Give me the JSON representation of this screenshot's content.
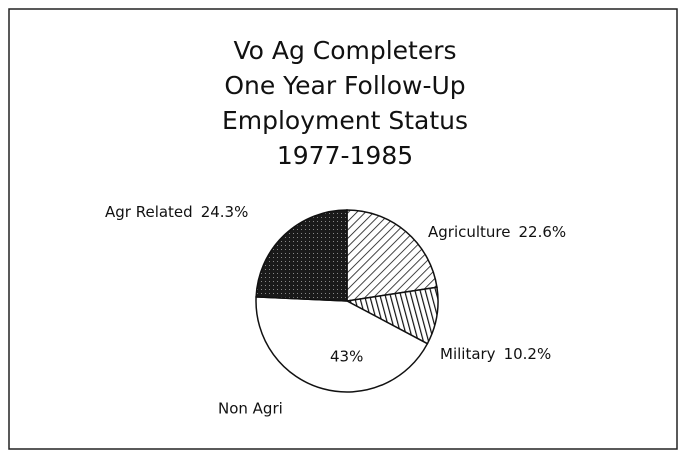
{
  "chart_data": {
    "type": "pie",
    "title": [
      "Vo Ag Completers",
      "One Year Follow-Up",
      "Employment Status",
      "1977-1985"
    ],
    "categories": [
      "Agriculture",
      "Military",
      "Non Agri",
      "Agr Related"
    ],
    "values": [
      22.6,
      10.2,
      43,
      24.3
    ],
    "value_labels": [
      "22.6%",
      "10.2%",
      "43%",
      "24.3%"
    ]
  }
}
